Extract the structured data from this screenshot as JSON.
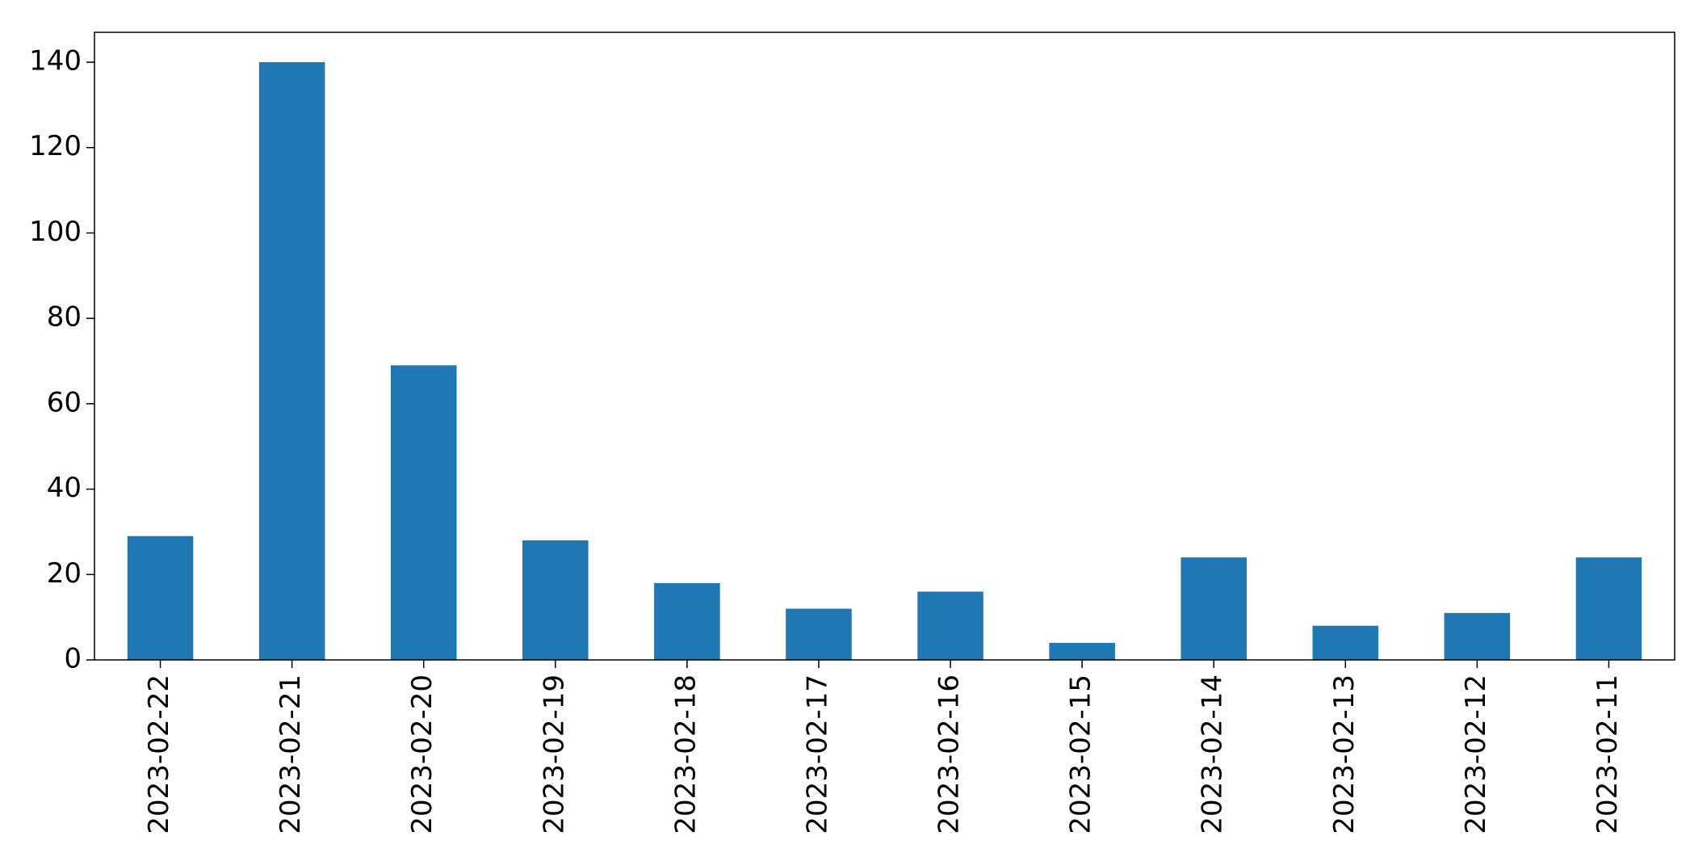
{
  "chart_data": {
    "type": "bar",
    "categories": [
      "2023-02-22",
      "2023-02-21",
      "2023-02-20",
      "2023-02-19",
      "2023-02-18",
      "2023-02-17",
      "2023-02-16",
      "2023-02-15",
      "2023-02-14",
      "2023-02-13",
      "2023-02-12",
      "2023-02-11"
    ],
    "values": [
      29,
      140,
      69,
      28,
      18,
      12,
      16,
      4,
      24,
      8,
      11,
      24
    ],
    "color": "#1f77b4",
    "ylim": [
      0,
      147
    ],
    "yticks": [
      0,
      20,
      40,
      60,
      80,
      100,
      120,
      140
    ],
    "grid": false
  }
}
